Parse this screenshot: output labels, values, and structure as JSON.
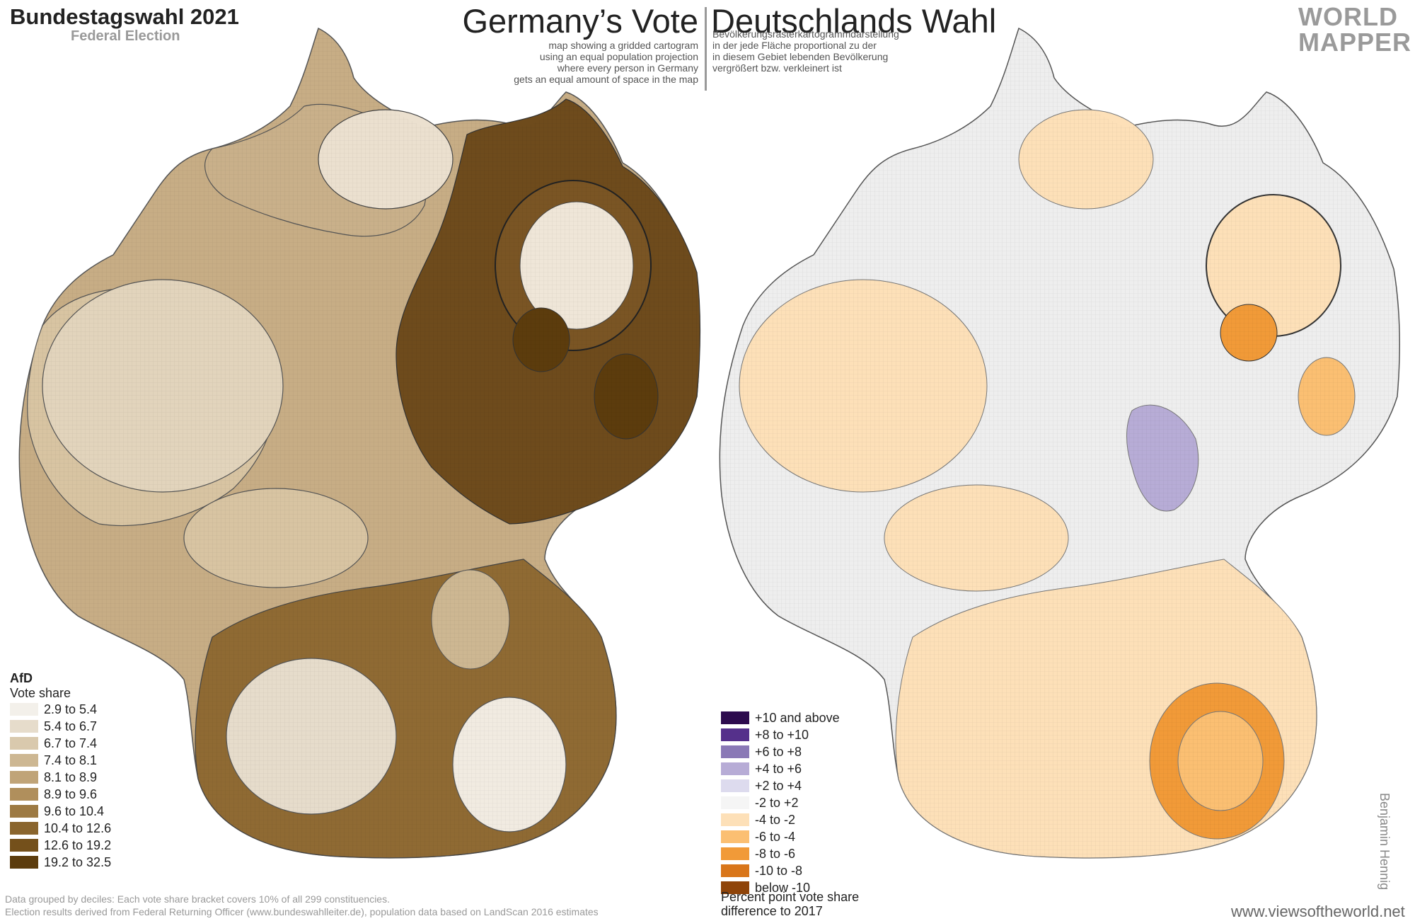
{
  "title": "Bundestagswahl 2021",
  "subtitle": "Federal Election",
  "center": {
    "title_en": "Germany’s Vote",
    "title_de": "Deutschlands Wahl",
    "desc_en": [
      "map showing a gridded cartogram",
      "using an equal population projection",
      "where every person in Germany",
      "gets an equal amount of space in the map"
    ],
    "desc_de": [
      "Bevölkerungsrasterkartogrammdarstellung",
      "in der jede Fläche proportional zu der",
      "in diesem Gebiet lebenden Bevölkerung",
      "vergrößert bzw. verkleinert ist"
    ]
  },
  "logo": {
    "line1": "WORLD",
    "line2": "MAPPER"
  },
  "legend_left": {
    "party": "AfD",
    "measure": "Vote share",
    "items": [
      {
        "label": "2.9 to 5.4",
        "color": "#f3f0ea"
      },
      {
        "label": "5.4 to 6.7",
        "color": "#e6dccb"
      },
      {
        "label": "6.7 to 7.4",
        "color": "#d9c9ad"
      },
      {
        "label": "7.4 to 8.1",
        "color": "#cdb792"
      },
      {
        "label": "8.1 to 8.9",
        "color": "#c0a478"
      },
      {
        "label": "8.9 to 9.6",
        "color": "#b08f5c"
      },
      {
        "label": "9.6 to 10.4",
        "color": "#9d7a43"
      },
      {
        "label": "10.4 to 12.6",
        "color": "#8a652d"
      },
      {
        "label": "12.6 to 19.2",
        "color": "#74501b"
      },
      {
        "label": "19.2 to 32.5",
        "color": "#5c3c0d"
      }
    ]
  },
  "legend_right": {
    "items": [
      {
        "label": "+10 and above",
        "color": "#2d0b4e"
      },
      {
        "label": "+8 to +10",
        "color": "#55308b"
      },
      {
        "label": "+6 to +8",
        "color": "#8a79b6"
      },
      {
        "label": "+4 to +6",
        "color": "#b7acd6"
      },
      {
        "label": "+2 to +4",
        "color": "#dddbee"
      },
      {
        "label": "-2 to +2",
        "color": "#f5f5f5"
      },
      {
        "label": "-4 to -2",
        "color": "#fde0b8"
      },
      {
        "label": "-6 to -4",
        "color": "#fbbf72"
      },
      {
        "label": "-8 to -6",
        "color": "#f19a38"
      },
      {
        "label": "-10 to -8",
        "color": "#d9761a"
      },
      {
        "label": "below -10",
        "color": "#8f4409"
      }
    ],
    "caption": [
      "Percent point vote share",
      "difference to 2017"
    ]
  },
  "footnotes": [
    "Data grouped by deciles: Each vote share bracket covers 10% of all 299 constituencies.",
    "Election results derived from Federal Returning Officer (www.bundeswahlleiter.de), population data based on LandScan 2016 estimates"
  ],
  "credit": {
    "url": "www.viewsoftheworld.net",
    "author": "Benjamin Hennig"
  }
}
